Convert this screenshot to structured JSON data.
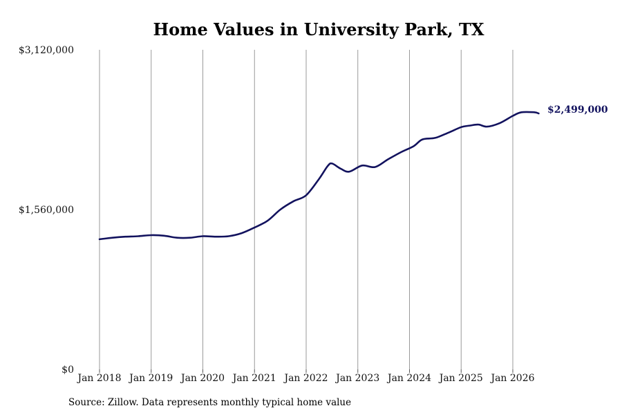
{
  "chart_data": {
    "type": "line",
    "title": "Home Values in University Park, TX",
    "xlabel": "",
    "ylabel": "",
    "x_tick_labels": [
      "Jan 2018",
      "Jan 2019",
      "Jan 2020",
      "Jan 2021",
      "Jan 2022",
      "Jan 2023",
      "Jan 2024",
      "Jan 2025",
      "Jan 2026"
    ],
    "y_tick_labels": [
      "$0",
      "$1,560,000",
      "$3,120,000"
    ],
    "ylim": [
      0,
      3120000
    ],
    "xlim": [
      "2017-12",
      "2026-10"
    ],
    "grid": "vertical lines at each January",
    "legend": "none",
    "line_color": "#12125e",
    "grid_color": "#999999",
    "last_value_label": "$2,499,000",
    "series": [
      {
        "x": [
          "2018-01",
          "2018-04",
          "2018-07",
          "2018-10",
          "2019-01",
          "2019-04",
          "2019-07",
          "2019-10",
          "2020-01",
          "2020-04",
          "2020-07",
          "2020-10",
          "2021-01",
          "2021-04",
          "2021-07",
          "2021-10",
          "2022-01",
          "2022-04",
          "2022-06",
          "2022-07",
          "2022-09",
          "2022-11",
          "2023-02",
          "2023-05",
          "2023-08",
          "2023-11",
          "2024-02",
          "2024-04",
          "2024-07",
          "2024-10",
          "2025-01",
          "2025-03",
          "2025-05",
          "2025-07",
          "2025-10",
          "2026-01",
          "2026-03",
          "2026-06",
          "2026-07"
        ],
        "values": [
          1270000,
          1285000,
          1295000,
          1300000,
          1310000,
          1305000,
          1285000,
          1285000,
          1300000,
          1295000,
          1300000,
          1330000,
          1385000,
          1450000,
          1560000,
          1640000,
          1700000,
          1860000,
          1985000,
          2010000,
          1960000,
          1930000,
          1990000,
          1975000,
          2050000,
          2120000,
          2180000,
          2245000,
          2260000,
          2310000,
          2365000,
          2380000,
          2390000,
          2370000,
          2405000,
          2475000,
          2510000,
          2510000,
          2499000
        ]
      }
    ]
  },
  "source": "Source: Zillow. Data represents monthly typical home value"
}
